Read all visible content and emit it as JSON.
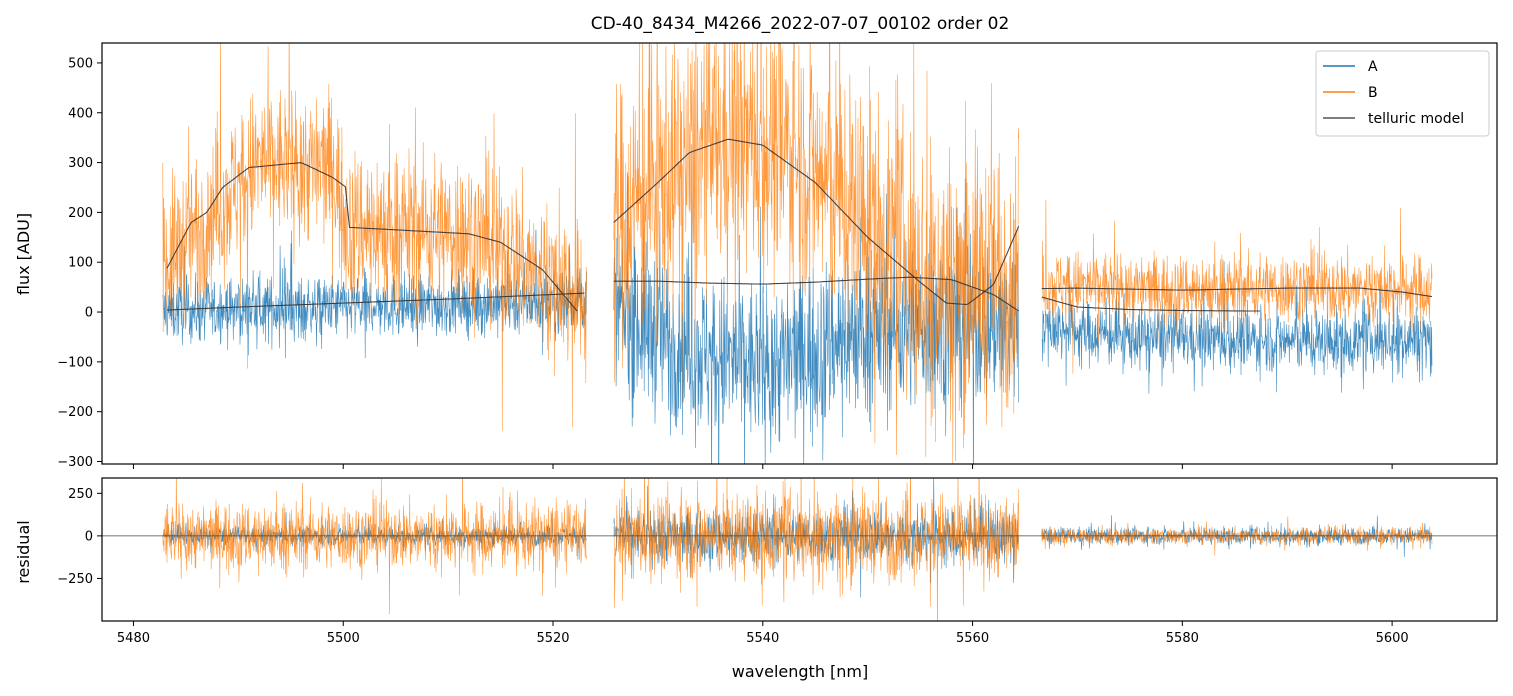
{
  "chart_data": {
    "type": "line",
    "title": "CD-40_8434_M4266_2022-07-07_00102  order 02",
    "xlabel": "wavelength [nm]",
    "xlim": [
      5477,
      5610
    ],
    "xticks": [
      5480,
      5500,
      5520,
      5540,
      5560,
      5580,
      5600
    ],
    "top_panel": {
      "ylabel": "flux [ADU]",
      "ylim": [
        -305,
        540
      ],
      "yticks": [
        -300,
        -200,
        -100,
        0,
        100,
        200,
        300,
        400,
        500
      ],
      "segments": [
        {
          "x0": 5482.8,
          "x1": 5523.2,
          "A": {
            "base": [
              [
                5482.8,
                2
              ],
              [
                5500,
                10
              ],
              [
                5510,
                15
              ],
              [
                5523,
                22
              ]
            ],
            "noise": 45
          },
          "B": {
            "base": [
              [
                5482.8,
                90
              ],
              [
                5487,
                190
              ],
              [
                5492,
                300
              ],
              [
                5499,
                290
              ],
              [
                5500.5,
                175
              ],
              [
                5512,
                160
              ],
              [
                5518,
                90
              ],
              [
                5523,
                30
              ]
            ],
            "noise": 110
          },
          "model_B": [
            [
              5483.2,
              88
            ],
            [
              5485.5,
              180
            ],
            [
              5487,
              200
            ],
            [
              5488.5,
              250
            ],
            [
              5491,
              290
            ],
            [
              5496,
              300
            ],
            [
              5499,
              270
            ],
            [
              5500.3,
              250
            ],
            [
              5500.5,
              170
            ],
            [
              5505,
              165
            ],
            [
              5512,
              157
            ],
            [
              5515,
              140
            ],
            [
              5519,
              85
            ],
            [
              5522.3,
              2
            ]
          ],
          "model_A": [
            [
              5483.2,
              4
            ],
            [
              5490,
              10
            ],
            [
              5500,
              18
            ],
            [
              5510,
              26
            ],
            [
              5523,
              38
            ]
          ]
        },
        {
          "x0": 5525.8,
          "x1": 5564.4,
          "A": {
            "base": [
              [
                5525.8,
                0
              ],
              [
                5530,
                -40
              ],
              [
                5535,
                -90
              ],
              [
                5540,
                -110
              ],
              [
                5545,
                -70
              ],
              [
                5550,
                -30
              ],
              [
                5564.4,
                -20
              ]
            ],
            "noise": 120
          },
          "B": {
            "base": [
              [
                5525.8,
                180
              ],
              [
                5530,
                260
              ],
              [
                5537,
                350
              ],
              [
                5543,
                320
              ],
              [
                5548,
                220
              ],
              [
                5555,
                80
              ],
              [
                5560,
                60
              ],
              [
                5564.4,
                90
              ]
            ],
            "noise": 190
          },
          "model_B": [
            [
              5525.8,
              180
            ],
            [
              5530,
              260
            ],
            [
              5533,
              320
            ],
            [
              5536.7,
              347
            ],
            [
              5540,
              335
            ],
            [
              5545,
              260
            ],
            [
              5550,
              150
            ],
            [
              5555,
              60
            ],
            [
              5557.5,
              18
            ],
            [
              5559.5,
              15
            ],
            [
              5562,
              55
            ],
            [
              5564.4,
              172
            ]
          ],
          "model_A": [
            [
              5525.8,
              62
            ],
            [
              5530,
              62
            ],
            [
              5535,
              58
            ],
            [
              5540,
              56
            ],
            [
              5545,
              60
            ],
            [
              5550,
              66
            ],
            [
              5554,
              70
            ],
            [
              5558,
              65
            ],
            [
              5562,
              35
            ],
            [
              5564.4,
              2
            ]
          ]
        },
        {
          "x0": 5566.6,
          "x1": 5603.8,
          "A": {
            "base": [
              [
                5566.6,
                -30
              ],
              [
                5575,
                -50
              ],
              [
                5585,
                -55
              ],
              [
                5595,
                -60
              ],
              [
                5603.8,
                -50
              ]
            ],
            "noise": 45
          },
          "B": {
            "base": [
              [
                5566.6,
                55
              ],
              [
                5580,
                45
              ],
              [
                5590,
                50
              ],
              [
                5603.8,
                45
              ]
            ],
            "noise": 50
          },
          "model_B": [
            [
              5566.6,
              47
            ],
            [
              5570,
              48
            ],
            [
              5580,
              44
            ],
            [
              5590,
              48
            ],
            [
              5597,
              48
            ],
            [
              5601,
              40
            ],
            [
              5603.8,
              31
            ]
          ],
          "model_A": [
            [
              5566.6,
              30
            ],
            [
              5570,
              10
            ],
            [
              5575,
              5
            ],
            [
              5580,
              3
            ],
            [
              5587.4,
              2
            ]
          ]
        }
      ]
    },
    "bottom_panel": {
      "ylabel": "residual",
      "ylim": [
        -500,
        340
      ],
      "yticks": [
        -250,
        0,
        250
      ],
      "zero_line": true,
      "noise": {
        "seg1": {
          "A": 40,
          "B": 140
        },
        "seg2": {
          "A": 110,
          "B": 180
        },
        "seg3": {
          "A": 35,
          "B": 35
        }
      }
    },
    "series": [
      {
        "name": "A",
        "color": "#1f77b4"
      },
      {
        "name": "B",
        "color": "#ff7f0e"
      },
      {
        "name": "telluric model",
        "color": "#333333"
      }
    ],
    "legend_position": "top-right"
  }
}
